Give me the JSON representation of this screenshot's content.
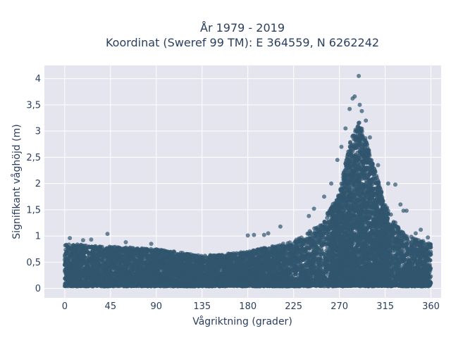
{
  "chart_data": {
    "type": "scatter",
    "title_line1": "År 1979 - 2019",
    "title_line2": "Koordinat (Sweref 99 TM): E 364559, N 6262242",
    "xlabel": "Vågriktning (grader)",
    "ylabel": "Signifikant våghöjd (m)",
    "xlim": [
      -20,
      370
    ],
    "ylim": [
      -0.18,
      4.25
    ],
    "x_ticks": [
      0,
      45,
      90,
      135,
      180,
      225,
      270,
      315,
      360
    ],
    "x_tick_labels": [
      "0",
      "45",
      "90",
      "135",
      "180",
      "225",
      "270",
      "315",
      "360"
    ],
    "y_ticks": [
      0,
      0.5,
      1,
      1.5,
      2,
      2.5,
      3,
      3.5,
      4
    ],
    "y_tick_labels": [
      "0",
      "0,5",
      "1",
      "1,5",
      "2",
      "2,5",
      "3",
      "3,5",
      "4"
    ],
    "background_color": "#e5e5f0",
    "point_color": "#31566e",
    "grid": true,
    "series": [
      {
        "envelope": {
          "direction": [
            0,
            45,
            90,
            135,
            180,
            225,
            250,
            270,
            280,
            290,
            300,
            315,
            330,
            345,
            360
          ],
          "height_max": [
            0.85,
            0.8,
            0.75,
            0.62,
            0.7,
            0.9,
            1.2,
            1.8,
            2.8,
            3.2,
            2.6,
            1.6,
            1.1,
            0.95,
            0.85
          ]
        },
        "outliers": [
          {
            "x": 289,
            "y": 4.05
          },
          {
            "x": 285,
            "y": 3.66
          },
          {
            "x": 283,
            "y": 3.62
          },
          {
            "x": 290,
            "y": 3.5
          },
          {
            "x": 280,
            "y": 3.42
          },
          {
            "x": 292,
            "y": 3.38
          },
          {
            "x": 296,
            "y": 3.2
          },
          {
            "x": 276,
            "y": 3.05
          },
          {
            "x": 300,
            "y": 2.88
          },
          {
            "x": 272,
            "y": 2.7
          },
          {
            "x": 268,
            "y": 2.45
          },
          {
            "x": 308,
            "y": 2.35
          },
          {
            "x": 318,
            "y": 2.0
          },
          {
            "x": 325,
            "y": 1.98
          },
          {
            "x": 262,
            "y": 2.0
          },
          {
            "x": 255,
            "y": 1.75
          },
          {
            "x": 330,
            "y": 1.6
          },
          {
            "x": 333,
            "y": 1.48
          },
          {
            "x": 336,
            "y": 1.48
          },
          {
            "x": 245,
            "y": 1.52
          },
          {
            "x": 240,
            "y": 1.38
          },
          {
            "x": 350,
            "y": 1.12
          },
          {
            "x": 345,
            "y": 1.05
          },
          {
            "x": 357,
            "y": 0.97
          },
          {
            "x": 200,
            "y": 1.05
          },
          {
            "x": 196,
            "y": 1.02
          },
          {
            "x": 186,
            "y": 1.02
          },
          {
            "x": 180,
            "y": 1.01
          },
          {
            "x": 212,
            "y": 1.18
          },
          {
            "x": 42,
            "y": 1.04
          },
          {
            "x": 5,
            "y": 0.96
          },
          {
            "x": 18,
            "y": 0.92
          },
          {
            "x": 26,
            "y": 0.93
          },
          {
            "x": 60,
            "y": 0.88
          },
          {
            "x": 85,
            "y": 0.85
          }
        ]
      }
    ]
  }
}
